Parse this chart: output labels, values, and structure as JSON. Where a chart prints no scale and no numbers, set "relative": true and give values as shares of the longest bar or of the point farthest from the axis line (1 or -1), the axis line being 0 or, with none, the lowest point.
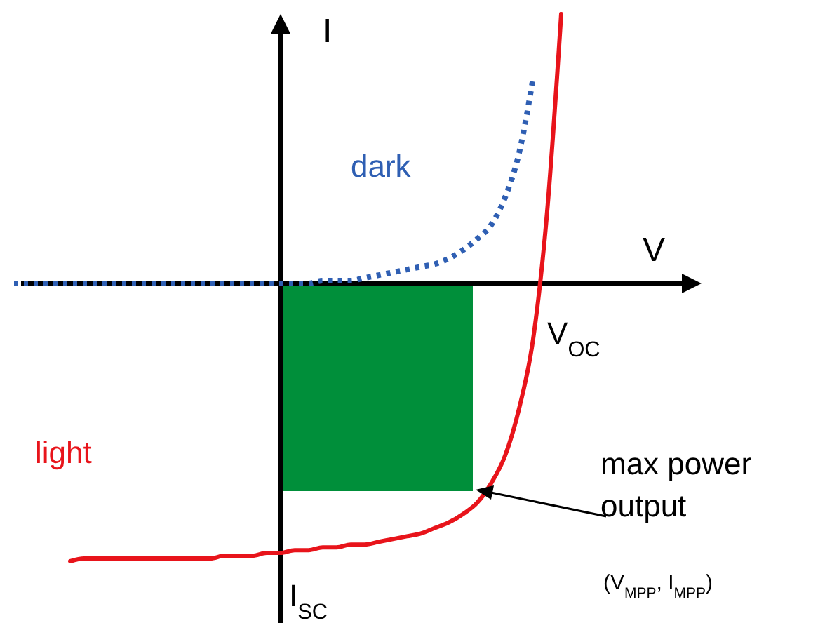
{
  "chart_data": {
    "type": "line",
    "relative": true,
    "xlabel": "V",
    "ylabel": "I",
    "categories": [
      null,
      null,
      null,
      null,
      null,
      null,
      null,
      null,
      null,
      null,
      null,
      null,
      null,
      null,
      null,
      null,
      null,
      null,
      null,
      null,
      null,
      null,
      null,
      null,
      null,
      null,
      null,
      null,
      null,
      null,
      null,
      null,
      null,
      null,
      null,
      null,
      null,
      null,
      null,
      null,
      null,
      null,
      null,
      null,
      null,
      null,
      null,
      null,
      null,
      null
    ],
    "series": [
      {
        "name": "dark",
        "color": "#2f5fb3",
        "line_style": "dotted",
        "values": [
          0,
          0,
          0,
          0,
          0,
          0,
          0,
          0,
          0,
          0,
          0,
          0,
          0,
          0,
          0,
          0,
          0,
          0,
          0,
          0,
          0,
          0,
          0.01,
          0.01,
          0.01,
          0.02,
          0.03,
          0.04,
          0.05,
          0.06,
          0.07,
          0.09,
          0.12,
          0.16,
          0.21,
          0.31,
          0.47,
          0.74,
          null,
          null,
          null,
          null,
          null,
          null,
          null,
          null,
          null,
          null,
          null,
          null
        ]
      },
      {
        "name": "light",
        "color": "#e8141b",
        "line_style": "solid",
        "values": [
          null,
          null,
          null,
          null,
          -1,
          -0.99,
          -0.99,
          -0.99,
          -0.99,
          -0.99,
          -0.99,
          -0.99,
          -0.99,
          -0.99,
          -0.99,
          -0.98,
          -0.98,
          -0.98,
          -0.97,
          -0.97,
          -0.96,
          -0.96,
          -0.95,
          -0.95,
          -0.94,
          -0.94,
          -0.93,
          -0.92,
          -0.91,
          -0.9,
          -0.88,
          -0.86,
          -0.83,
          -0.79,
          -0.72,
          -0.62,
          -0.45,
          -0.2,
          0.26,
          0.97,
          null,
          null,
          null,
          null,
          null,
          null,
          null,
          null,
          null,
          null
        ]
      }
    ],
    "annotations": [
      "V$_{OC}$",
      "I$_{SC}$",
      "max power output",
      "(V$_{MPP}$, I$_{MPP}$)"
    ],
    "marker": "none"
  }
}
